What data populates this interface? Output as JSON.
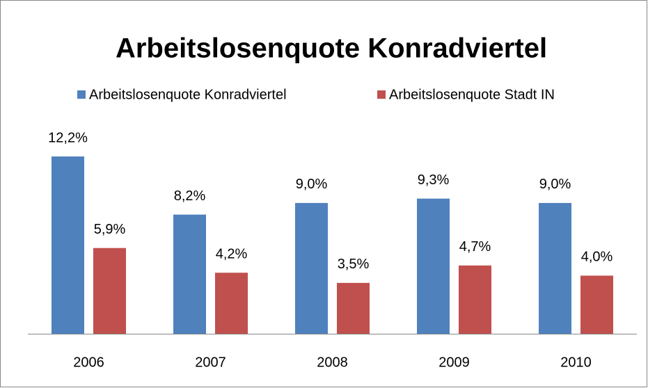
{
  "chart_data": {
    "type": "bar",
    "title": "Arbeitslosenquote Konradviertel",
    "categories": [
      "2006",
      "2007",
      "2008",
      "2009",
      "2010"
    ],
    "series": [
      {
        "name": "Arbeitslosenquote Konradviertel",
        "color": "#4f81bd",
        "values": [
          12.2,
          8.2,
          9.0,
          9.3,
          9.0
        ],
        "value_labels": [
          "12,2%",
          "8,2%",
          "9,0%",
          "9,3%",
          "9,0%"
        ]
      },
      {
        "name": "Arbeitslosenquote Stadt IN",
        "color": "#c0504d",
        "values": [
          5.9,
          4.2,
          3.5,
          4.7,
          4.0
        ],
        "value_labels": [
          "5,9%",
          "4,2%",
          "3,5%",
          "4,7%",
          "4,0%"
        ]
      }
    ],
    "legend": "top"
  }
}
